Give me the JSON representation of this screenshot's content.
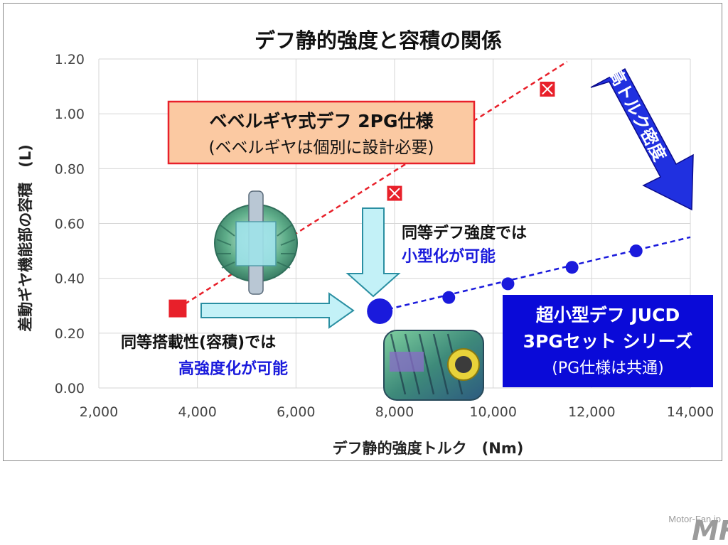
{
  "chart_data": {
    "type": "scatter",
    "title": "デフ静的強度と容積の関係",
    "xlabel": "デフ静的強度トルク　(Nm)",
    "ylabel": "差動ギヤ機能部の容積　(L)",
    "xlim": [
      2000,
      14000
    ],
    "ylim": [
      0,
      1.2
    ],
    "x_ticks": [
      "2,000",
      "4,000",
      "6,000",
      "8,000",
      "10,000",
      "12,000",
      "14,000"
    ],
    "y_ticks": [
      "0.00",
      "0.20",
      "0.40",
      "0.60",
      "0.80",
      "1.00",
      "1.20"
    ],
    "grid": true,
    "series": [
      {
        "name": "ベベルギヤ式デフ 2PG仕様",
        "color": "#e8202a",
        "marker": "square",
        "points": [
          [
            3600,
            0.29
          ],
          [
            8000,
            0.71
          ],
          [
            11100,
            1.09
          ]
        ],
        "trend": [
          [
            3600,
            0.29
          ],
          [
            11500,
            1.19
          ]
        ]
      },
      {
        "name": "超小型デフ JUCD 3PGセット シリーズ",
        "color": "#1a1adc",
        "marker": "circle",
        "points": [
          [
            7700,
            0.28
          ],
          [
            9100,
            0.33
          ],
          [
            10300,
            0.38
          ],
          [
            11600,
            0.44
          ],
          [
            12900,
            0.5
          ]
        ],
        "trend": [
          [
            7700,
            0.28
          ],
          [
            14000,
            0.55
          ]
        ]
      }
    ],
    "annotations": {
      "bevel_box_line1": "ベベルギヤ式デフ 2PG仕様",
      "bevel_box_line2": "(ベベルギヤは個別に設計必要)",
      "same_strength_line1": "同等デフ強度では",
      "same_strength_line2": "小型化が可能",
      "same_volume_line1": "同等搭載性(容積)では",
      "same_volume_line2": "高強度化が可能",
      "jucd_line1": "超小型デフ JUCD",
      "jucd_line2": "3PGセット シリーズ",
      "jucd_line3": "(PG仕様は共通)",
      "density_arrow": "高トルク密度"
    }
  },
  "colors": {
    "bevel_box_fill": "#fbc9a2",
    "bevel_box_border": "#e8202a",
    "jucd_box_fill": "#0a0ad8",
    "arrow_fill": "#c3f1f7",
    "density_arrow_fill": "#2030e0",
    "accent_blue": "#1a1adc"
  },
  "watermark": {
    "logo_text": "MF",
    "site": "Motor-Fan.jp"
  }
}
